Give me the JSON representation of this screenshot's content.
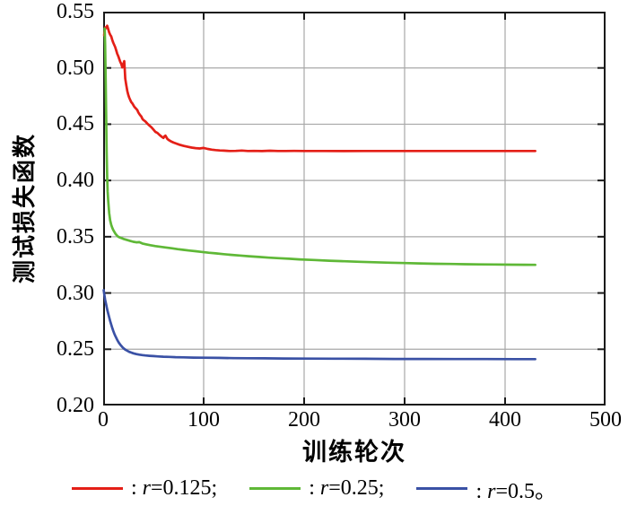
{
  "chart_data": {
    "type": "line",
    "title": "",
    "xlabel": "训练轮次",
    "ylabel": "测试损失函数",
    "xlim": [
      0,
      500
    ],
    "ylim": [
      0.2,
      0.55
    ],
    "grid": true,
    "legend_position": "bottom",
    "background": "#ffffff",
    "axis_color": "#1a1a1a",
    "grid_color": "#a8a8a8",
    "xticks": [
      {
        "v": 0,
        "label": "0"
      },
      {
        "v": 100,
        "label": "100"
      },
      {
        "v": 200,
        "label": "200"
      },
      {
        "v": 300,
        "label": "300"
      },
      {
        "v": 400,
        "label": "400"
      },
      {
        "v": 500,
        "label": "500"
      }
    ],
    "yticks": [
      {
        "v": 0.55,
        "label": "0.55"
      },
      {
        "v": 0.5,
        "label": "0.50"
      },
      {
        "v": 0.45,
        "label": "0.45"
      },
      {
        "v": 0.4,
        "label": "0.40"
      },
      {
        "v": 0.35,
        "label": "0.35"
      },
      {
        "v": 0.3,
        "label": "0.30"
      },
      {
        "v": 0.25,
        "label": "0.25"
      },
      {
        "v": 0.2,
        "label": "0.20"
      }
    ],
    "series": [
      {
        "name": "r=0.125",
        "color": "#e41f17",
        "points": [
          [
            1,
            0.529
          ],
          [
            1.5,
            0.5335
          ],
          [
            2,
            0.536
          ],
          [
            3,
            0.5355
          ],
          [
            4,
            0.5375
          ],
          [
            5,
            0.5345
          ],
          [
            6,
            0.5315
          ],
          [
            7,
            0.5295
          ],
          [
            8,
            0.528
          ],
          [
            9,
            0.525
          ],
          [
            10,
            0.5225
          ],
          [
            11,
            0.5205
          ],
          [
            12,
            0.5185
          ],
          [
            13,
            0.5155
          ],
          [
            14,
            0.5125
          ],
          [
            15,
            0.5105
          ],
          [
            16,
            0.508
          ],
          [
            17,
            0.5055
          ],
          [
            18,
            0.5035
          ],
          [
            19,
            0.5005
          ],
          [
            20,
            0.5035
          ],
          [
            21,
            0.506
          ],
          [
            21.5,
            0.498
          ],
          [
            22,
            0.4905
          ],
          [
            23,
            0.4845
          ],
          [
            24,
            0.4795
          ],
          [
            25,
            0.476
          ],
          [
            26,
            0.4735
          ],
          [
            27,
            0.4715
          ],
          [
            28,
            0.4695
          ],
          [
            29,
            0.4685
          ],
          [
            30,
            0.467
          ],
          [
            31,
            0.4655
          ],
          [
            32,
            0.4645
          ],
          [
            33,
            0.4635
          ],
          [
            34,
            0.4625
          ],
          [
            35,
            0.4605
          ],
          [
            36,
            0.459
          ],
          [
            37,
            0.4578
          ],
          [
            38,
            0.4568
          ],
          [
            39,
            0.4548
          ],
          [
            40,
            0.4538
          ],
          [
            42,
            0.4525
          ],
          [
            44,
            0.4505
          ],
          [
            46,
            0.4488
          ],
          [
            48,
            0.4472
          ],
          [
            50,
            0.4452
          ],
          [
            52,
            0.4432
          ],
          [
            54,
            0.4422
          ],
          [
            56,
            0.4405
          ],
          [
            58,
            0.439
          ],
          [
            60,
            0.4378
          ],
          [
            61,
            0.4392
          ],
          [
            62,
            0.4398
          ],
          [
            63,
            0.4382
          ],
          [
            64,
            0.4368
          ],
          [
            66,
            0.4355
          ],
          [
            68,
            0.4345
          ],
          [
            70,
            0.4337
          ],
          [
            73,
            0.4327
          ],
          [
            76,
            0.4318
          ],
          [
            80,
            0.4307
          ],
          [
            84,
            0.4299
          ],
          [
            88,
            0.4292
          ],
          [
            92,
            0.4287
          ],
          [
            96,
            0.4284
          ],
          [
            100,
            0.4289
          ],
          [
            104,
            0.428
          ],
          [
            108,
            0.4274
          ],
          [
            112,
            0.427
          ],
          [
            116,
            0.4267
          ],
          [
            120,
            0.4265
          ],
          [
            126,
            0.4262
          ],
          [
            132,
            0.4263
          ],
          [
            138,
            0.4266
          ],
          [
            144,
            0.4262
          ],
          [
            150,
            0.4263
          ],
          [
            158,
            0.4261
          ],
          [
            166,
            0.4264
          ],
          [
            174,
            0.4262
          ],
          [
            182,
            0.4262
          ],
          [
            190,
            0.4263
          ],
          [
            200,
            0.4262
          ],
          [
            220,
            0.4262
          ],
          [
            240,
            0.4261
          ],
          [
            260,
            0.4262
          ],
          [
            280,
            0.4262
          ],
          [
            300,
            0.4262
          ],
          [
            330,
            0.4262
          ],
          [
            360,
            0.4262
          ],
          [
            400,
            0.4262
          ],
          [
            430,
            0.4262
          ]
        ]
      },
      {
        "name": "r=0.25",
        "color": "#5fb837",
        "points": [
          [
            1.5,
            0.535
          ],
          [
            2,
            0.52
          ],
          [
            2.5,
            0.49
          ],
          [
            3,
            0.455
          ],
          [
            3.5,
            0.425
          ],
          [
            4,
            0.402
          ],
          [
            4.5,
            0.39
          ],
          [
            5,
            0.382
          ],
          [
            6,
            0.371
          ],
          [
            7,
            0.3645
          ],
          [
            8,
            0.3605
          ],
          [
            9,
            0.358
          ],
          [
            10,
            0.356
          ],
          [
            11,
            0.3545
          ],
          [
            12,
            0.353
          ],
          [
            13,
            0.3518
          ],
          [
            14,
            0.3508
          ],
          [
            15,
            0.35
          ],
          [
            17,
            0.3492
          ],
          [
            19,
            0.3485
          ],
          [
            21,
            0.3478
          ],
          [
            24,
            0.347
          ],
          [
            27,
            0.3462
          ],
          [
            30,
            0.3455
          ],
          [
            33,
            0.345
          ],
          [
            36,
            0.3452
          ],
          [
            39,
            0.344
          ],
          [
            43,
            0.3432
          ],
          [
            47,
            0.3425
          ],
          [
            52,
            0.3417
          ],
          [
            57,
            0.341
          ],
          [
            62,
            0.3405
          ],
          [
            68,
            0.3398
          ],
          [
            74,
            0.339
          ],
          [
            80,
            0.3383
          ],
          [
            86,
            0.3377
          ],
          [
            92,
            0.3371
          ],
          [
            98,
            0.3365
          ],
          [
            105,
            0.3358
          ],
          [
            112,
            0.3352
          ],
          [
            120,
            0.3345
          ],
          [
            128,
            0.3339
          ],
          [
            136,
            0.3333
          ],
          [
            145,
            0.3327
          ],
          [
            155,
            0.332
          ],
          [
            165,
            0.3314
          ],
          [
            175,
            0.3309
          ],
          [
            185,
            0.3304
          ],
          [
            195,
            0.3299
          ],
          [
            210,
            0.3293
          ],
          [
            225,
            0.3287
          ],
          [
            240,
            0.3282
          ],
          [
            255,
            0.3277
          ],
          [
            270,
            0.3273
          ],
          [
            285,
            0.3269
          ],
          [
            300,
            0.3266
          ],
          [
            315,
            0.3263
          ],
          [
            330,
            0.326
          ],
          [
            345,
            0.3258
          ],
          [
            360,
            0.3256
          ],
          [
            375,
            0.3254
          ],
          [
            390,
            0.3253
          ],
          [
            405,
            0.3252
          ],
          [
            420,
            0.3251
          ],
          [
            430,
            0.325
          ]
        ]
      },
      {
        "name": "r=0.5",
        "color": "#3a51a5",
        "points": [
          [
            0.5,
            0.3025
          ],
          [
            1,
            0.2995
          ],
          [
            2,
            0.294
          ],
          [
            3,
            0.2895
          ],
          [
            4,
            0.2853
          ],
          [
            5,
            0.2818
          ],
          [
            6,
            0.2784
          ],
          [
            7,
            0.275
          ],
          [
            8,
            0.2718
          ],
          [
            9,
            0.269
          ],
          [
            10,
            0.2664
          ],
          [
            11,
            0.2641
          ],
          [
            12,
            0.262
          ],
          [
            13,
            0.2601
          ],
          [
            14,
            0.2583
          ],
          [
            15,
            0.2567
          ],
          [
            16,
            0.2553
          ],
          [
            17,
            0.2541
          ],
          [
            18,
            0.253
          ],
          [
            19,
            0.252
          ],
          [
            20,
            0.2511
          ],
          [
            22,
            0.2497
          ],
          [
            24,
            0.2486
          ],
          [
            26,
            0.2477
          ],
          [
            28,
            0.247
          ],
          [
            30,
            0.2464
          ],
          [
            33,
            0.2457
          ],
          [
            36,
            0.2452
          ],
          [
            39,
            0.2448
          ],
          [
            42,
            0.2445
          ],
          [
            46,
            0.2442
          ],
          [
            50,
            0.2439
          ],
          [
            55,
            0.2436
          ],
          [
            60,
            0.2434
          ],
          [
            66,
            0.2432
          ],
          [
            72,
            0.243
          ],
          [
            80,
            0.2428
          ],
          [
            90,
            0.2426
          ],
          [
            100,
            0.2425
          ],
          [
            115,
            0.2423
          ],
          [
            130,
            0.2421
          ],
          [
            145,
            0.242
          ],
          [
            160,
            0.2419
          ],
          [
            180,
            0.2418
          ],
          [
            200,
            0.2417
          ],
          [
            230,
            0.2416
          ],
          [
            260,
            0.2415
          ],
          [
            290,
            0.2414
          ],
          [
            320,
            0.2414
          ],
          [
            350,
            0.2413
          ],
          [
            380,
            0.2413
          ],
          [
            410,
            0.2412
          ],
          [
            430,
            0.2412
          ]
        ]
      }
    ],
    "legend": [
      {
        "series": "r=0.125",
        "color": "#e41f17",
        "pre": ": ",
        "var": "r",
        "post": "=0.125;"
      },
      {
        "series": "r=0.25",
        "color": "#5fb837",
        "pre": ": ",
        "var": "r",
        "post": "=0.25;"
      },
      {
        "series": "r=0.5",
        "color": "#3a51a5",
        "pre": ": ",
        "var": "r",
        "post": "=0.5。"
      }
    ]
  }
}
